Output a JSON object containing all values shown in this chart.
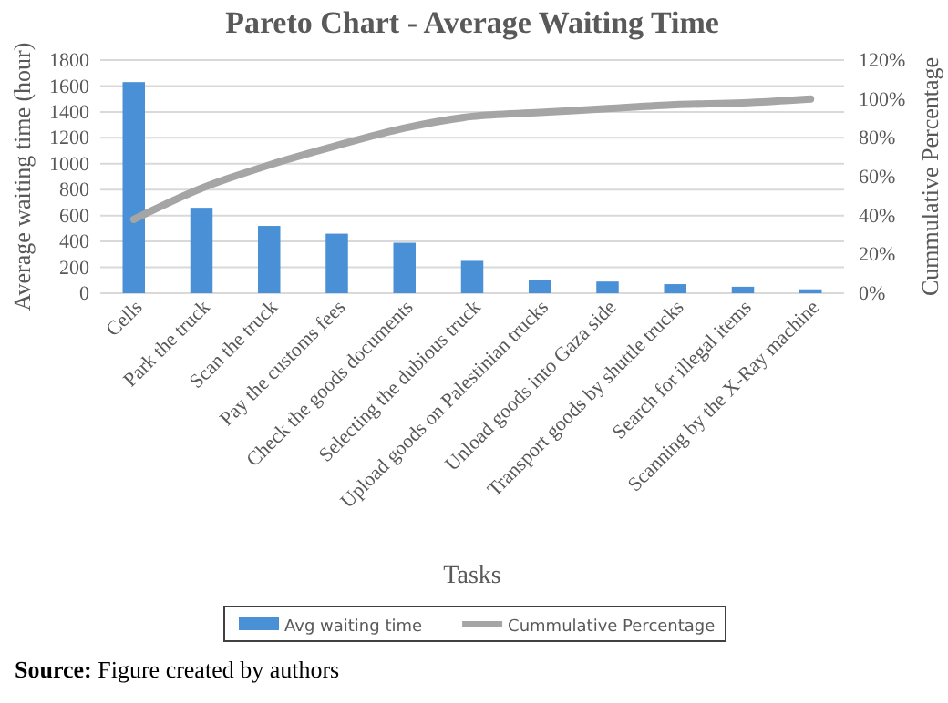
{
  "chart_data": {
    "type": "bar",
    "title": "Pareto Chart - Average Waiting Time",
    "xlabel": "Tasks",
    "ylabel": "Average waiting time (hour)",
    "y2label": "Cummulative Percentage",
    "categories": [
      "Cells",
      "Park the truck",
      "Scan the truck",
      "Pay the customs fees",
      "Check the goods documents",
      "Selecting the dubious truck",
      "Upload goods on Palestinian trucks",
      "Unload goods into Gaza side",
      "Transport goods by shuttle trucks",
      "Search for illegal items",
      "Scanning by the X-Ray machine"
    ],
    "series": [
      {
        "name": "Avg waiting time",
        "color": "#4a90d6",
        "values": [
          1630,
          660,
          520,
          460,
          390,
          250,
          100,
          90,
          70,
          50,
          30
        ]
      },
      {
        "name": "Cummulative Percentage",
        "type": "line",
        "axis": "y2",
        "color": "#a5a5a5",
        "values": [
          38,
          54,
          66,
          76,
          85,
          91,
          93,
          95,
          97,
          98,
          100
        ]
      }
    ],
    "ylim": [
      0,
      1800
    ],
    "yticks": [
      0,
      200,
      400,
      600,
      800,
      1000,
      1200,
      1400,
      1600,
      1800
    ],
    "y2lim": [
      0,
      120
    ],
    "y2ticks": [
      {
        "value": 0,
        "label": "0%"
      },
      {
        "value": 20,
        "label": "20%"
      },
      {
        "value": 40,
        "label": "40%"
      },
      {
        "value": 60,
        "label": "60%"
      },
      {
        "value": 80,
        "label": "80%"
      },
      {
        "value": 100,
        "label": "100%"
      },
      {
        "value": 120,
        "label": "120%"
      }
    ],
    "grid": "y",
    "legend": "bottom",
    "marker": "none",
    "line_style": "solid",
    "annotations": [
      "Source: Figure created by authors"
    ]
  }
}
